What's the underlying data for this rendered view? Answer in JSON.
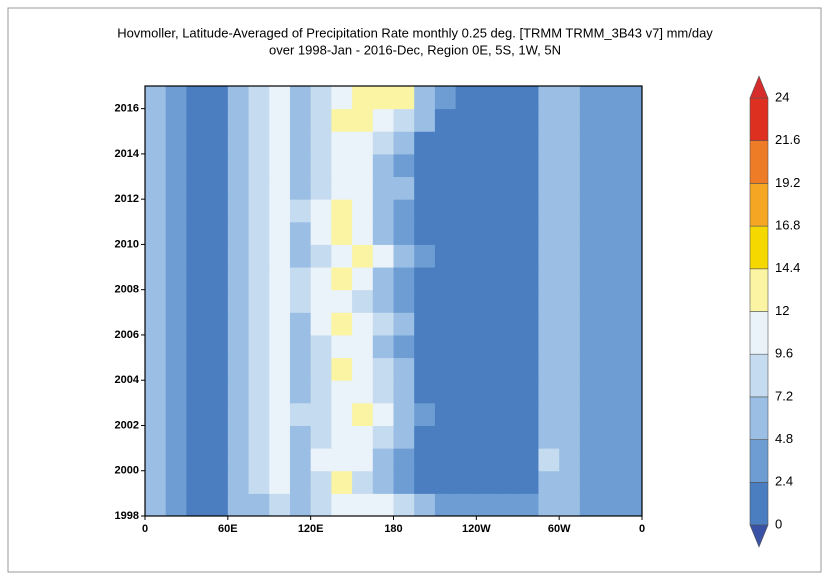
{
  "chart_data": {
    "type": "heatmap",
    "title": "Hovmoller, Latitude-Averaged of Precipitation Rate monthly 0.25 deg. [TRMM TRMM_3B43 v7] mm/day",
    "subtitle": "over 1998-Jan - 2016-Dec, Region 0E, 5S, 1W, 5N",
    "x": [
      7.5,
      22.5,
      37.5,
      52.5,
      67.5,
      82.5,
      97.5,
      112.5,
      127.5,
      142.5,
      157.5,
      172.5,
      187.5,
      202.5,
      217.5,
      232.5,
      247.5,
      262.5,
      277.5,
      292.5,
      307.5,
      322.5,
      337.5,
      352.5
    ],
    "y": [
      1998,
      1999,
      2000,
      2001,
      2002,
      2003,
      2004,
      2005,
      2006,
      2007,
      2008,
      2009,
      2010,
      2011,
      2012,
      2013,
      2014,
      2015,
      2016
    ],
    "values": [
      [
        5,
        3,
        2,
        2,
        5,
        7,
        9,
        6,
        8,
        10,
        11,
        10,
        9,
        6,
        4,
        3,
        3,
        3,
        3,
        7,
        5,
        4,
        3,
        4
      ],
      [
        5,
        3,
        1.5,
        2,
        6,
        8,
        11,
        7,
        9,
        12,
        9,
        6,
        4,
        2,
        1,
        1,
        1,
        1,
        2,
        7,
        5,
        4,
        3,
        4
      ],
      [
        5,
        3,
        1.5,
        2,
        6,
        8,
        10,
        7,
        10,
        11,
        10,
        6,
        4,
        2,
        1,
        1,
        1,
        1,
        2,
        8,
        5,
        4,
        3,
        4
      ],
      [
        5,
        3,
        1.5,
        2,
        6,
        8,
        10,
        7,
        9,
        11,
        10,
        8,
        5,
        2,
        1,
        1,
        1,
        1,
        2,
        7,
        5,
        4,
        3,
        4
      ],
      [
        5,
        3,
        1.5,
        2,
        6,
        8,
        10,
        8,
        9,
        11,
        12,
        10,
        7,
        3,
        1,
        1,
        1,
        1,
        2,
        7,
        5,
        4,
        3,
        4
      ],
      [
        5,
        3,
        1.5,
        2,
        6,
        9,
        11,
        7,
        9,
        11,
        11,
        8,
        5,
        2,
        1,
        1,
        1,
        1,
        2,
        7,
        6,
        4,
        3,
        4
      ],
      [
        5,
        3,
        1.5,
        2,
        6,
        8,
        10,
        7,
        9,
        12,
        11,
        8,
        5,
        2,
        1,
        1,
        1,
        1,
        2,
        7,
        5,
        4,
        3,
        4
      ],
      [
        5,
        3,
        1.5,
        2,
        7,
        8,
        10,
        7,
        9,
        11,
        10,
        7,
        4,
        2,
        1,
        1,
        1,
        1,
        2,
        7,
        5,
        4,
        3,
        4
      ],
      [
        5,
        3,
        1.5,
        2,
        6,
        8,
        10,
        7,
        10,
        12,
        11,
        8,
        5,
        2,
        1,
        1,
        1,
        1,
        2,
        7,
        5,
        4,
        3,
        4
      ],
      [
        5,
        3,
        1.5,
        2,
        6,
        8,
        10,
        8,
        10,
        11,
        9,
        5,
        3,
        2,
        1,
        1,
        1,
        1,
        2,
        7,
        5,
        4,
        3,
        4
      ],
      [
        5,
        3,
        1.5,
        2,
        6,
        8,
        11,
        8,
        10,
        12,
        10,
        6,
        4,
        2,
        1,
        1,
        1,
        1,
        2,
        7,
        5,
        4,
        3,
        4
      ],
      [
        5,
        3,
        1.5,
        2,
        6,
        8,
        10,
        7,
        9,
        11,
        12,
        11,
        7,
        3,
        1,
        1,
        1,
        1,
        2,
        7,
        5,
        4,
        3,
        4
      ],
      [
        5,
        3,
        1.5,
        2,
        6,
        8,
        10,
        7,
        10,
        12,
        11,
        7,
        4,
        2,
        1,
        1,
        1,
        1,
        2,
        7,
        5,
        4,
        3,
        4
      ],
      [
        5,
        3,
        1.5,
        2,
        6,
        8,
        10,
        8,
        10,
        12,
        10,
        6,
        4,
        2,
        1,
        1,
        1,
        1,
        2,
        7,
        5,
        4,
        3,
        4
      ],
      [
        5,
        3,
        1.5,
        2,
        6,
        8,
        10,
        7,
        9,
        11,
        10,
        7,
        5,
        2,
        1,
        1,
        1,
        1,
        2,
        7,
        5,
        4,
        3,
        4
      ],
      [
        5,
        3,
        1.5,
        2,
        6,
        8,
        10,
        7,
        9,
        11,
        10,
        7,
        4,
        2,
        1,
        1,
        1,
        1,
        2,
        7,
        5,
        4,
        3,
        4
      ],
      [
        5,
        3,
        1.5,
        2,
        6,
        8,
        10,
        7,
        9,
        11,
        11,
        8,
        5,
        2,
        1,
        1,
        1,
        1,
        2,
        7,
        5,
        4,
        3,
        4
      ],
      [
        5,
        3,
        1.5,
        2,
        6,
        8,
        10,
        7,
        9,
        12,
        12,
        11,
        9,
        5,
        2,
        1,
        1,
        1,
        2,
        7,
        5,
        4,
        3,
        4
      ],
      [
        5,
        3,
        1.5,
        2,
        6,
        8,
        10,
        7,
        9,
        11,
        12,
        13,
        12,
        6,
        3,
        2,
        1,
        1,
        2,
        7,
        5,
        4,
        3,
        4
      ]
    ],
    "xlim": [
      0,
      360
    ],
    "xticks": [
      {
        "value": 0,
        "label": "0"
      },
      {
        "value": 60,
        "label": "60E"
      },
      {
        "value": 120,
        "label": "120E"
      },
      180,
      {
        "value": 240,
        "label": "120W"
      },
      {
        "value": 300,
        "label": "60W"
      },
      {
        "value": 360,
        "label": "0"
      }
    ],
    "ylim": [
      1998,
      2017
    ],
    "yticks": [
      1998,
      2000,
      2002,
      2004,
      2006,
      2008,
      2010,
      2012,
      2014,
      2016
    ],
    "levels": [
      0,
      2.4,
      4.8,
      7.2,
      9.6,
      12,
      14.4,
      16.8,
      19.2,
      21.6,
      24
    ],
    "colors": [
      "#4a7ec0",
      "#6d9dd3",
      "#9bbfe4",
      "#c5dbf0",
      "#eaf2fa",
      "#faf4a3",
      "#f4d800",
      "#f5a623",
      "#ee7b25",
      "#dd3020"
    ],
    "under_color": "#3a52a6",
    "over_color": "#d62c2c"
  }
}
